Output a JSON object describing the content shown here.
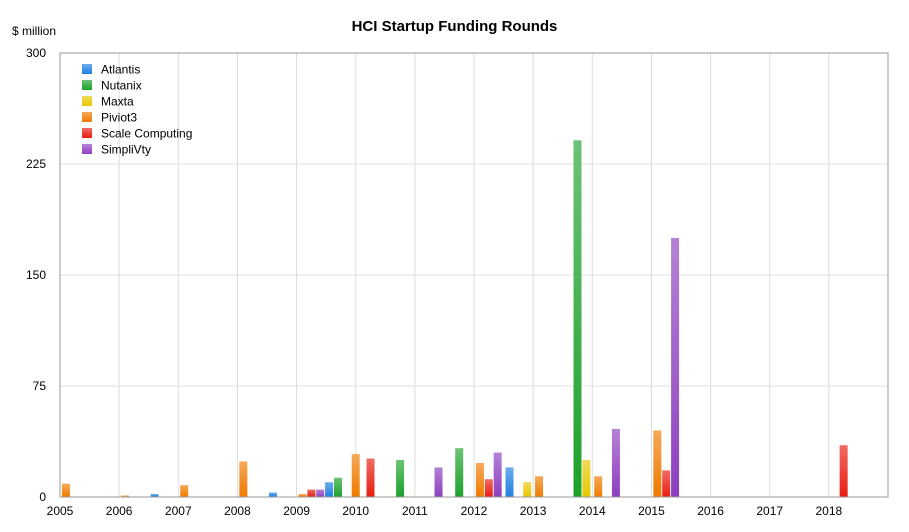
{
  "chart_data": {
    "type": "bar",
    "title": "HCI Startup Funding Rounds",
    "ylabel": "$ million",
    "xlabel": "",
    "ylim": [
      0,
      300
    ],
    "yticks": [
      0,
      75,
      150,
      225,
      300
    ],
    "xlim": [
      2005,
      2019
    ],
    "xticks": [
      2005,
      2006,
      2007,
      2008,
      2009,
      2010,
      2011,
      2012,
      2013,
      2014,
      2015,
      2016,
      2017,
      2018
    ],
    "grid": true,
    "legend_position": "top-left",
    "series": [
      {
        "name": "Atlantis",
        "color": "#1f7fe0",
        "points": [
          [
            2006.6,
            2
          ],
          [
            2008.6,
            3
          ],
          [
            2009.55,
            10
          ],
          [
            2012.6,
            20
          ]
        ]
      },
      {
        "name": "Nutanix",
        "color": "#1da12a",
        "points": [
          [
            2009.7,
            13
          ],
          [
            2010.75,
            25
          ],
          [
            2011.75,
            33
          ],
          [
            2013.75,
            241
          ]
        ]
      },
      {
        "name": "Maxta",
        "color": "#e8c600",
        "points": [
          [
            2012.9,
            10
          ],
          [
            2013.9,
            25
          ]
        ]
      },
      {
        "name": "Piviot3",
        "color": "#f07a00",
        "points": [
          [
            2005.1,
            9
          ],
          [
            2006.1,
            1
          ],
          [
            2007.1,
            8
          ],
          [
            2008.1,
            24
          ],
          [
            2009.1,
            2
          ],
          [
            2010.0,
            29
          ],
          [
            2012.1,
            23
          ],
          [
            2013.1,
            14
          ],
          [
            2014.1,
            14
          ],
          [
            2015.1,
            45
          ]
        ]
      },
      {
        "name": "Scale Computing",
        "color": "#e81d10",
        "points": [
          [
            2009.25,
            5
          ],
          [
            2010.25,
            26
          ],
          [
            2012.25,
            12
          ],
          [
            2015.25,
            18
          ],
          [
            2018.25,
            35
          ]
        ]
      },
      {
        "name": "SimpliVty",
        "color": "#8d3fc0",
        "points": [
          [
            2009.4,
            5
          ],
          [
            2011.4,
            20
          ],
          [
            2012.4,
            30
          ],
          [
            2014.4,
            46
          ],
          [
            2015.4,
            175
          ]
        ]
      }
    ]
  }
}
